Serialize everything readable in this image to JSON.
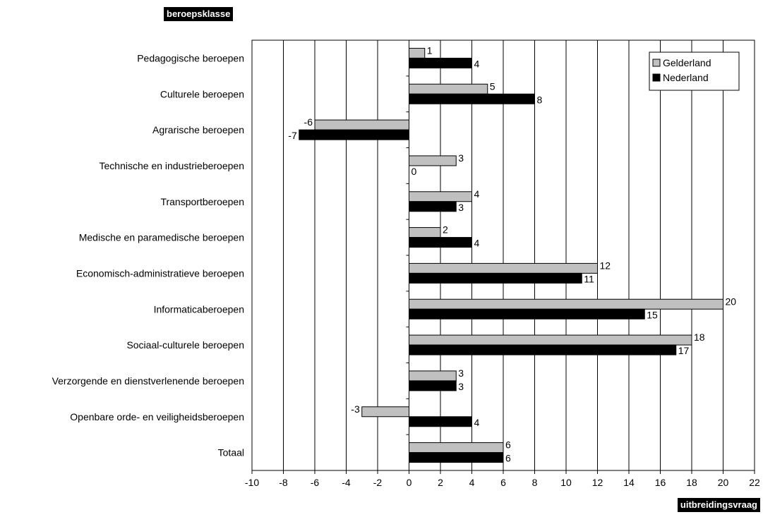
{
  "chart_data": {
    "type": "bar",
    "orientation": "horizontal",
    "xlabel": "uitbreidingsvraag",
    "ylabel": "beroepsklasse",
    "xlim": [
      -10,
      22
    ],
    "xticks": [
      "-10",
      "-8",
      "-6",
      "-4",
      "-2",
      "0",
      "2",
      "4",
      "6",
      "8",
      "10",
      "12",
      "14",
      "16",
      "18",
      "20",
      "22"
    ],
    "grid": true,
    "legend_position": "top-right",
    "categories": [
      "Pedagogische beroepen",
      "Culturele beroepen",
      "Agrarische beroepen",
      "Technische en industrieberoepen",
      "Transportberoepen",
      "Medische en paramedische beroepen",
      "Economisch-administratieve beroepen",
      "Informaticaberoepen",
      "Sociaal-culturele beroepen",
      "Verzorgende en dienstverlenende beroepen",
      "Openbare orde- en veiligheidsberoepen",
      "Totaal"
    ],
    "series": [
      {
        "name": "Gelderland",
        "color": "#c0c0c0",
        "values": [
          1,
          5,
          -6,
          3,
          4,
          2,
          12,
          20,
          18,
          3,
          -3,
          6
        ]
      },
      {
        "name": "Nederland",
        "color": "#000000",
        "values": [
          4,
          8,
          -7,
          0,
          3,
          4,
          11,
          15,
          17,
          3,
          4,
          6
        ]
      }
    ]
  }
}
